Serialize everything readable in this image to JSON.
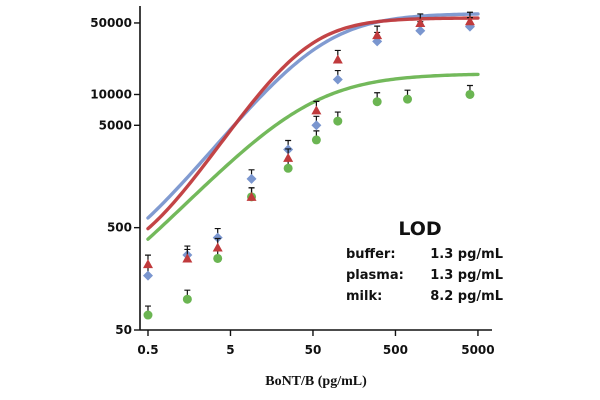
{
  "chart_data": {
    "type": "line",
    "xlabel": "BoNT/B (pg/mL)",
    "ylabel": "",
    "x_scale": "log",
    "y_scale": "log",
    "xlim": [
      0.4,
      7000
    ],
    "ylim": [
      50,
      70000
    ],
    "x_ticks": [
      {
        "value": 0.5,
        "label": "0.5"
      },
      {
        "value": 5,
        "label": "5"
      },
      {
        "value": 50,
        "label": "50"
      },
      {
        "value": 500,
        "label": "500"
      },
      {
        "value": 5000,
        "label": "5000"
      }
    ],
    "y_ticks": [
      {
        "value": 50,
        "label": "50"
      },
      {
        "value": 500,
        "label": "500"
      },
      {
        "value": 5000,
        "label": "5000"
      },
      {
        "value": 10000,
        "label": "10000"
      },
      {
        "value": 50000,
        "label": "50000"
      }
    ],
    "series": [
      {
        "color": "#c03a3c",
        "marker": "triangle",
        "x": [
          0.5,
          1.5,
          3.5,
          9,
          25,
          55,
          100,
          300,
          1000,
          4000
        ],
        "y": [
          220,
          250,
          320,
          1000,
          2400,
          7000,
          22000,
          38000,
          50000,
          52000
        ],
        "curve": {
          "bottom": 200,
          "top": 56000,
          "ec50": 40,
          "hill": 1.2
        }
      },
      {
        "color": "#7a96cf",
        "marker": "diamond",
        "x": [
          0.5,
          1.5,
          3.5,
          9,
          25,
          55,
          100,
          300,
          1000,
          4000
        ],
        "y": [
          170,
          270,
          400,
          1500,
          2900,
          5000,
          14000,
          33000,
          42000,
          46000
        ],
        "curve": {
          "bottom": 150,
          "top": 62000,
          "ec50": 65,
          "hill": 1.0
        }
      },
      {
        "color": "#6bb552",
        "marker": "circle",
        "x": [
          0.5,
          1.5,
          3.5,
          9,
          25,
          55,
          100,
          300,
          700,
          4000
        ],
        "y": [
          70,
          100,
          250,
          1000,
          1900,
          3600,
          5500,
          8500,
          9000,
          10000
        ],
        "curve": {
          "bottom": 45,
          "top": 16000,
          "ec50": 45,
          "hill": 0.85
        }
      }
    ]
  },
  "lod": {
    "title": "LOD",
    "rows": [
      {
        "label": "buffer:",
        "value": "1.3 pg/mL"
      },
      {
        "label": "plasma:",
        "value": "1.3 pg/mL"
      },
      {
        "label": "milk:",
        "value": "8.2 pg/mL"
      }
    ]
  }
}
